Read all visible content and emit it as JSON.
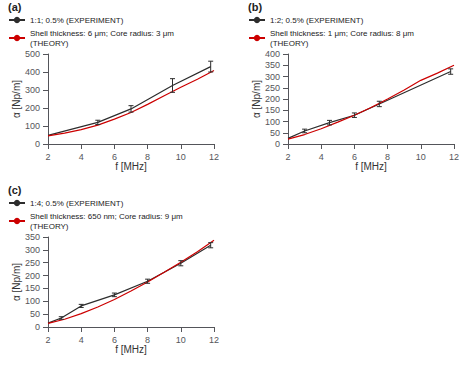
{
  "chart_data": [
    {
      "type": "line",
      "title": "(a)",
      "xlabel": "f [MHz]",
      "ylabel": "α [Np/m]",
      "xlim": [
        2,
        12
      ],
      "xticks": [
        2,
        4,
        6,
        8,
        10,
        12
      ],
      "ylim": [
        0,
        500
      ],
      "yticks": [
        0,
        100,
        200,
        300,
        400,
        500
      ],
      "grid": false,
      "legend": "upper left",
      "series": [
        {
          "name": "1:1; 0.5% (EXPERIMENT)",
          "color": "#2d2d2d",
          "line_style": "solid",
          "x": [
            2.0,
            5.0,
            7.0,
            9.5,
            11.8
          ],
          "values": [
            48,
            120,
            195,
            325,
            430
          ],
          "errors": [
            0,
            12,
            18,
            38,
            30
          ]
        },
        {
          "name": "Shell thickness: 6 μm; Core radius: 3 μm\n(THEORY)",
          "color": "#cc0000",
          "line_style": "solid",
          "x": [
            2,
            3,
            4,
            5,
            6,
            7,
            8,
            9,
            10,
            11,
            12
          ],
          "values": [
            45,
            60,
            80,
            105,
            138,
            175,
            220,
            268,
            315,
            360,
            408
          ]
        }
      ]
    },
    {
      "type": "line",
      "title": "(b)",
      "xlabel": "f [MHz]",
      "ylabel": "α [Np/m]",
      "xlim": [
        2,
        12
      ],
      "xticks": [
        2,
        4,
        6,
        8,
        10,
        12
      ],
      "ylim": [
        0,
        400
      ],
      "yticks": [
        0,
        50,
        100,
        150,
        200,
        250,
        300,
        350,
        400
      ],
      "grid": false,
      "legend": "upper left",
      "series": [
        {
          "name": "1:2; 0.5% (EXPERIMENT)",
          "color": "#2d2d2d",
          "line_style": "solid",
          "x": [
            2.0,
            3.0,
            4.5,
            6.0,
            7.5,
            11.8
          ],
          "values": [
            25,
            58,
            95,
            128,
            178,
            322
          ],
          "errors": [
            0,
            8,
            10,
            10,
            12,
            12
          ]
        },
        {
          "name": "Shell thickness: 1 μm; Core radius: 8 μm\n(THEORY)",
          "color": "#cc0000",
          "line_style": "solid",
          "x": [
            2,
            3,
            4,
            5,
            6,
            7,
            8,
            9,
            10,
            11,
            12
          ],
          "values": [
            22,
            42,
            68,
            97,
            128,
            162,
            200,
            240,
            283,
            315,
            350
          ]
        }
      ]
    },
    {
      "type": "line",
      "title": "(c)",
      "xlabel": "f [MHz]",
      "ylabel": "α [Np/m]",
      "xlim": [
        2,
        12
      ],
      "xticks": [
        2,
        4,
        6,
        8,
        10,
        12
      ],
      "ylim": [
        0,
        350
      ],
      "yticks": [
        0,
        50,
        100,
        150,
        200,
        250,
        300,
        350
      ],
      "grid": false,
      "legend": "upper left",
      "series": [
        {
          "name": "1:4; 0.5% (EXPERIMENT)",
          "color": "#2d2d2d",
          "line_style": "solid",
          "x": [
            2.0,
            2.8,
            4.0,
            6.0,
            8.0,
            10.0,
            11.8
          ],
          "values": [
            15,
            35,
            82,
            125,
            178,
            248,
            318
          ],
          "errors": [
            0,
            5,
            6,
            7,
            8,
            10,
            10
          ]
        },
        {
          "name": "Shell thickness: 650 nm; Core radius: 9 μm\n(THEORY)",
          "color": "#cc0000",
          "line_style": "solid",
          "x": [
            2,
            3,
            4,
            5,
            6,
            7,
            8,
            9,
            10,
            11,
            12
          ],
          "values": [
            14,
            30,
            52,
            78,
            107,
            140,
            175,
            213,
            252,
            293,
            337
          ]
        }
      ]
    }
  ]
}
